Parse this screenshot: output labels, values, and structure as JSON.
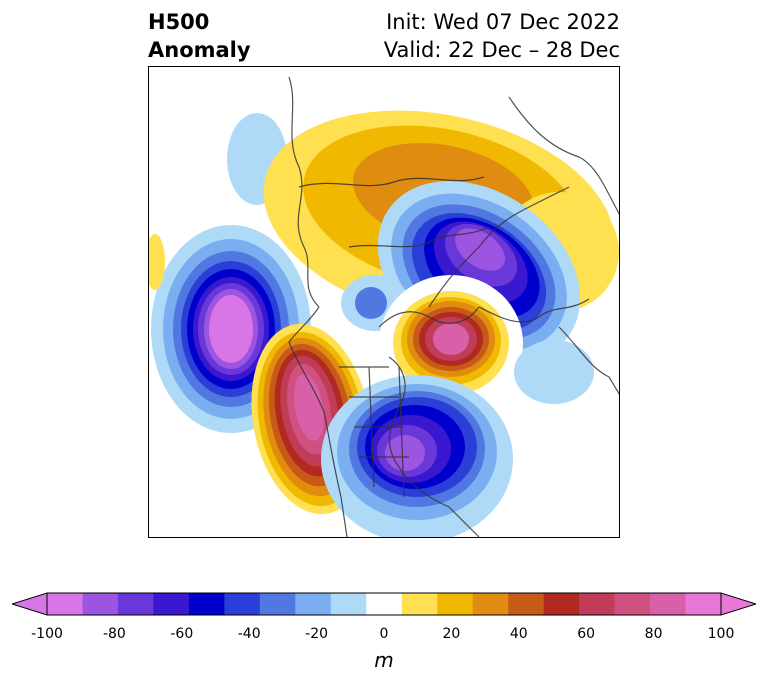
{
  "header": {
    "title_line1": "H500",
    "title_line2": "Anomaly",
    "init": "Init: Wed 07 Dec 2022",
    "valid": "Valid: 22 Dec – 28 Dec"
  },
  "colorbar": {
    "unit": "m",
    "ticks": [
      "-100",
      "-80",
      "-60",
      "-40",
      "-20",
      "0",
      "20",
      "40",
      "60",
      "80",
      "100"
    ],
    "colors": [
      "#d876e8",
      "#9b55e0",
      "#6a38d8",
      "#3a18d0",
      "#0000cc",
      "#2a3fd8",
      "#5078e0",
      "#7aaef0",
      "#aedaf8",
      "#ffffff",
      "#ffe050",
      "#f0b800",
      "#e08c10",
      "#c85a18",
      "#b02a22",
      "#c03c58",
      "#d05080",
      "#d860a8",
      "#e878d8"
    ]
  }
}
